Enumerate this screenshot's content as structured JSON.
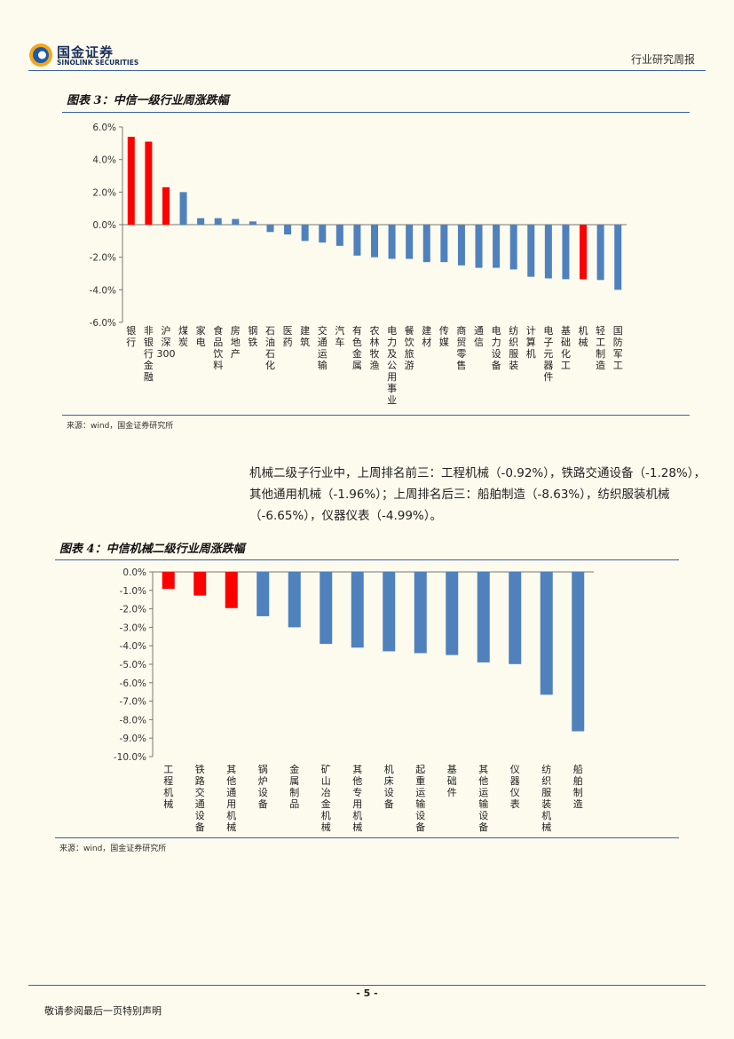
{
  "header": {
    "company_cn": "国金证券",
    "company_en": "SINOLINK SECURITIES",
    "report_type": "行业研究周报"
  },
  "figure3": {
    "title": "图表 3：中信一级行业周涨跌幅",
    "source": "来源：wind，国金证券研究所"
  },
  "figure4": {
    "title": "图表 4：中信机械二级行业周涨跌幅",
    "source": "来源：wind，国金证券研究所"
  },
  "paragraph": "机械二级子行业中，上周排名前三：工程机械（-0.92%），铁路交通设备（-1.28%），其他通用机械（-1.96%）；上周排名后三：船舶制造（-8.63%），纺织服装机械（-6.65%），仪器仪表（-4.99%）。",
  "footer": {
    "page": "- 5 -",
    "disclaimer": "敬请参阅最后一页特别声明"
  },
  "colors": {
    "highlight": "#ff0000",
    "normal": "#4f81bd",
    "rule": "#3a5ea8"
  },
  "chart_data": [
    {
      "type": "bar",
      "title": "图表 3：中信一级行业周涨跌幅",
      "categories": [
        "银行",
        "非银行金融",
        "沪深300",
        "煤炭",
        "家电",
        "食品饮料",
        "房地产",
        "钢铁",
        "石油石化",
        "医药",
        "建筑",
        "交通运输",
        "汽车",
        "有色金属",
        "农林牧渔",
        "电力及公用事业",
        "餐饮旅游",
        "建材",
        "传媒",
        "商贸零售",
        "通信",
        "电力设备",
        "纺织服装",
        "计算机",
        "电子元器件",
        "基础化工",
        "机械",
        "轻工制造",
        "国防军工"
      ],
      "values": [
        5.4,
        5.1,
        2.3,
        2.0,
        0.4,
        0.4,
        0.35,
        0.2,
        -0.45,
        -0.6,
        -1.0,
        -1.1,
        -1.3,
        -1.9,
        -2.0,
        -2.1,
        -2.1,
        -2.3,
        -2.3,
        -2.5,
        -2.65,
        -2.65,
        -2.75,
        -3.2,
        -3.3,
        -3.35,
        -3.35,
        -3.4,
        -4.0
      ],
      "highlight": [
        0,
        1,
        2,
        26
      ],
      "ylim": [
        -6.0,
        6.0
      ],
      "yticks": [
        "6.0%",
        "4.0%",
        "2.0%",
        "0.0%",
        "-2.0%",
        "-4.0%",
        "-6.0%"
      ],
      "ylabel": "",
      "xlabel": ""
    },
    {
      "type": "bar",
      "title": "图表 4：中信机械二级行业周涨跌幅",
      "categories": [
        "工程机械",
        "铁路交通设备",
        "其他通用机械",
        "锅炉设备",
        "金属制品",
        "矿山冶金机械",
        "其他专用机械",
        "机床设备",
        "起重运输设备",
        "基础件",
        "其他运输设备",
        "仪器仪表",
        "纺织服装机械",
        "船舶制造"
      ],
      "values": [
        -0.92,
        -1.28,
        -1.96,
        -2.4,
        -3.0,
        -3.9,
        -4.1,
        -4.3,
        -4.4,
        -4.5,
        -4.9,
        -4.99,
        -6.65,
        -8.63
      ],
      "highlight": [
        0,
        1,
        2
      ],
      "ylim": [
        -10.0,
        0.0
      ],
      "yticks": [
        "0.0%",
        "-1.0%",
        "-2.0%",
        "-3.0%",
        "-4.0%",
        "-5.0%",
        "-6.0%",
        "-7.0%",
        "-8.0%",
        "-9.0%",
        "-10.0%"
      ],
      "ylabel": "",
      "xlabel": ""
    }
  ]
}
